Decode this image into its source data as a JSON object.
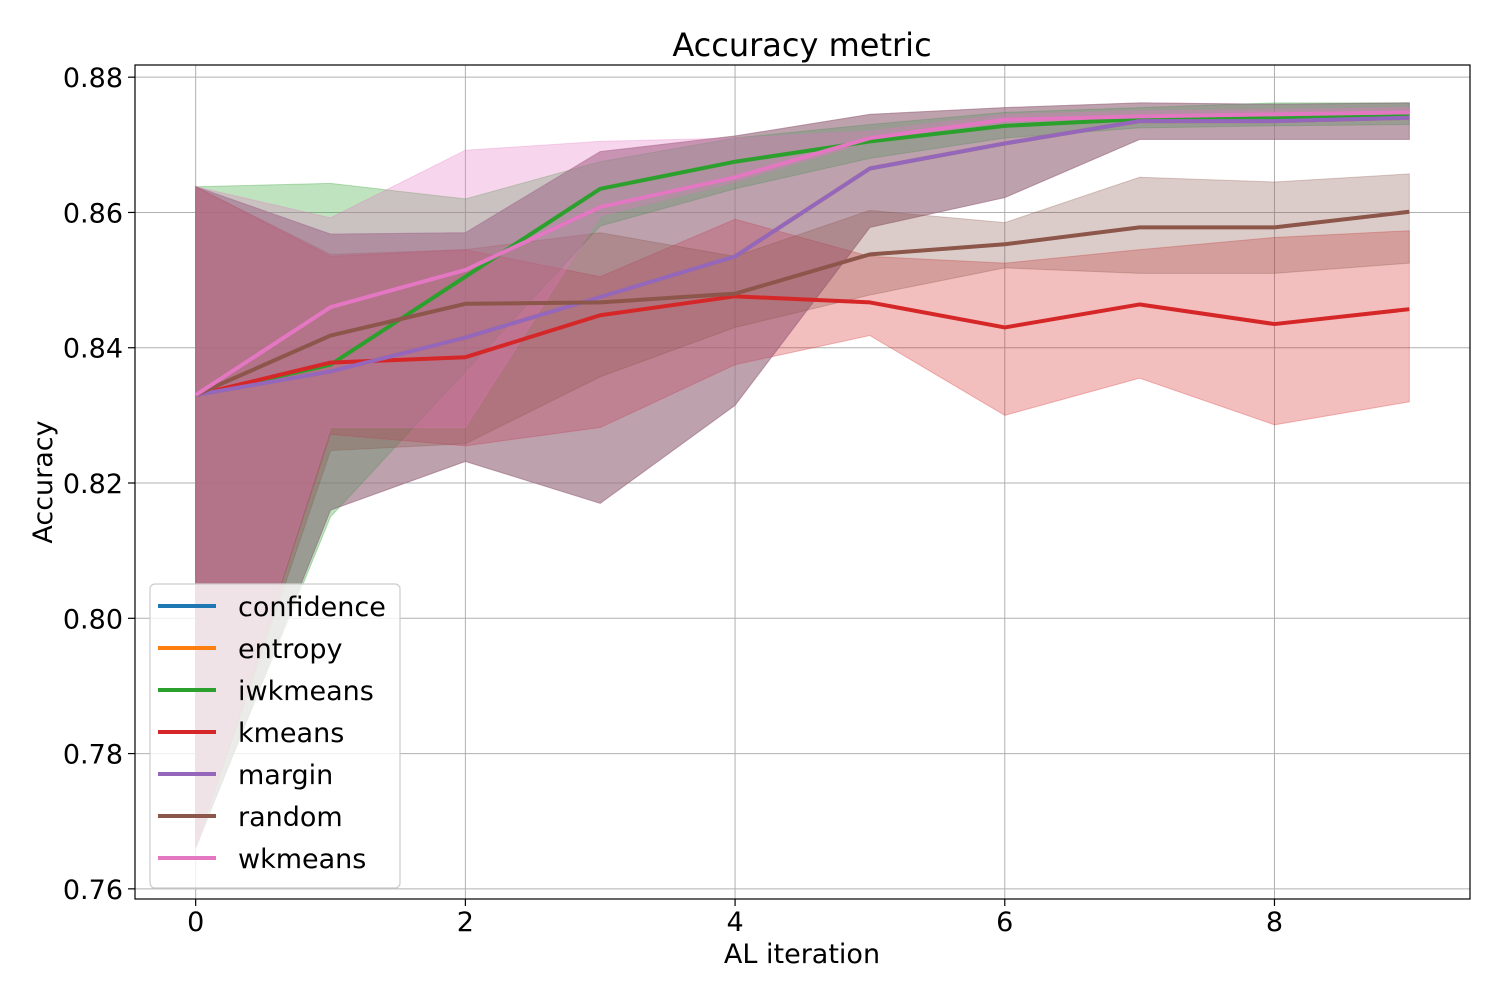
{
  "chart_data": {
    "type": "line",
    "title": "Accuracy metric",
    "xlabel": "AL iteration",
    "ylabel": "Accuracy",
    "xlim": [
      -0.45,
      9.45
    ],
    "ylim": [
      0.7585,
      0.8818
    ],
    "xticks": [
      0,
      2,
      4,
      6,
      8
    ],
    "xtick_labels": [
      "0",
      "2",
      "4",
      "6",
      "8"
    ],
    "yticks": [
      0.76,
      0.78,
      0.8,
      0.82,
      0.84,
      0.86,
      0.88
    ],
    "ytick_labels": [
      "0.76",
      "0.78",
      "0.80",
      "0.82",
      "0.84",
      "0.86",
      "0.88"
    ],
    "grid": true,
    "legend_position": "lower-left",
    "x": [
      0,
      1,
      2,
      3,
      4,
      5,
      6,
      7,
      8,
      9
    ],
    "series": [
      {
        "name": "confidence",
        "color": "#1f77b4",
        "values": [
          0.833,
          0.8365,
          0.8415,
          0.8475,
          0.8535,
          0.8665,
          0.8702,
          0.8735,
          0.8735,
          0.874
        ],
        "lower": [
          0.766,
          0.816,
          0.8232,
          0.817,
          0.8315,
          0.8578,
          0.8622,
          0.8708,
          0.8708,
          0.8708
        ],
        "upper": [
          0.8638,
          0.8568,
          0.857,
          0.869,
          0.8713,
          0.8745,
          0.8755,
          0.8762,
          0.876,
          0.8762
        ]
      },
      {
        "name": "entropy",
        "color": "#ff7f0e",
        "values": [
          0.833,
          0.8365,
          0.8415,
          0.8475,
          0.8535,
          0.8665,
          0.8702,
          0.8735,
          0.8735,
          0.874
        ],
        "lower": [
          0.766,
          0.816,
          0.8232,
          0.817,
          0.8315,
          0.8578,
          0.8622,
          0.8708,
          0.8708,
          0.8708
        ],
        "upper": [
          0.8638,
          0.8568,
          0.857,
          0.869,
          0.8713,
          0.8745,
          0.8755,
          0.8762,
          0.876,
          0.8762
        ]
      },
      {
        "name": "iwkmeans",
        "color": "#2ca02c",
        "values": [
          0.833,
          0.8375,
          0.8505,
          0.8635,
          0.8675,
          0.8705,
          0.8728,
          0.8738,
          0.874,
          0.8742
        ],
        "lower": [
          0.7662,
          0.815,
          0.8365,
          0.858,
          0.8635,
          0.868,
          0.871,
          0.8725,
          0.8728,
          0.873
        ],
        "upper": [
          0.8638,
          0.8643,
          0.862,
          0.8675,
          0.871,
          0.873,
          0.8748,
          0.8755,
          0.8762,
          0.8762
        ]
      },
      {
        "name": "kmeans",
        "color": "#d62728",
        "values": [
          0.833,
          0.8378,
          0.8386,
          0.8448,
          0.8476,
          0.8467,
          0.843,
          0.8464,
          0.8435,
          0.8457
        ],
        "lower": [
          0.7662,
          0.8272,
          0.8255,
          0.8282,
          0.8375,
          0.8418,
          0.83,
          0.8355,
          0.8286,
          0.832
        ],
        "upper": [
          0.8638,
          0.8535,
          0.8545,
          0.8505,
          0.859,
          0.8535,
          0.8525,
          0.8545,
          0.8563,
          0.8573
        ]
      },
      {
        "name": "margin",
        "color": "#9467bd",
        "values": [
          0.833,
          0.8365,
          0.8415,
          0.8475,
          0.8535,
          0.8665,
          0.8702,
          0.8735,
          0.8735,
          0.874
        ],
        "lower": [
          0.766,
          0.816,
          0.8232,
          0.817,
          0.8315,
          0.8578,
          0.8622,
          0.8708,
          0.8708,
          0.8708
        ],
        "upper": [
          0.8638,
          0.8568,
          0.857,
          0.869,
          0.8713,
          0.8745,
          0.8755,
          0.8762,
          0.876,
          0.8762
        ]
      },
      {
        "name": "random",
        "color": "#8c564b",
        "values": [
          0.833,
          0.8418,
          0.8465,
          0.8467,
          0.848,
          0.8538,
          0.8553,
          0.8578,
          0.8578,
          0.8601
        ],
        "lower": [
          0.7662,
          0.8248,
          0.8258,
          0.8357,
          0.843,
          0.8478,
          0.8518,
          0.851,
          0.851,
          0.8525
        ],
        "upper": [
          0.8638,
          0.8538,
          0.8545,
          0.857,
          0.8535,
          0.8603,
          0.8585,
          0.8652,
          0.8645,
          0.8657
        ]
      },
      {
        "name": "wkmeans",
        "color": "#e377c2",
        "values": [
          0.833,
          0.846,
          0.8515,
          0.8608,
          0.8652,
          0.871,
          0.8737,
          0.8742,
          0.8745,
          0.8748
        ],
        "lower": [
          0.7662,
          0.8282,
          0.8282,
          0.8595,
          0.8645,
          0.8705,
          0.873,
          0.8738,
          0.8742,
          0.8745
        ],
        "upper": [
          0.8638,
          0.8592,
          0.8692,
          0.8705,
          0.871,
          0.872,
          0.8745,
          0.875,
          0.8752,
          0.8755
        ]
      }
    ]
  }
}
